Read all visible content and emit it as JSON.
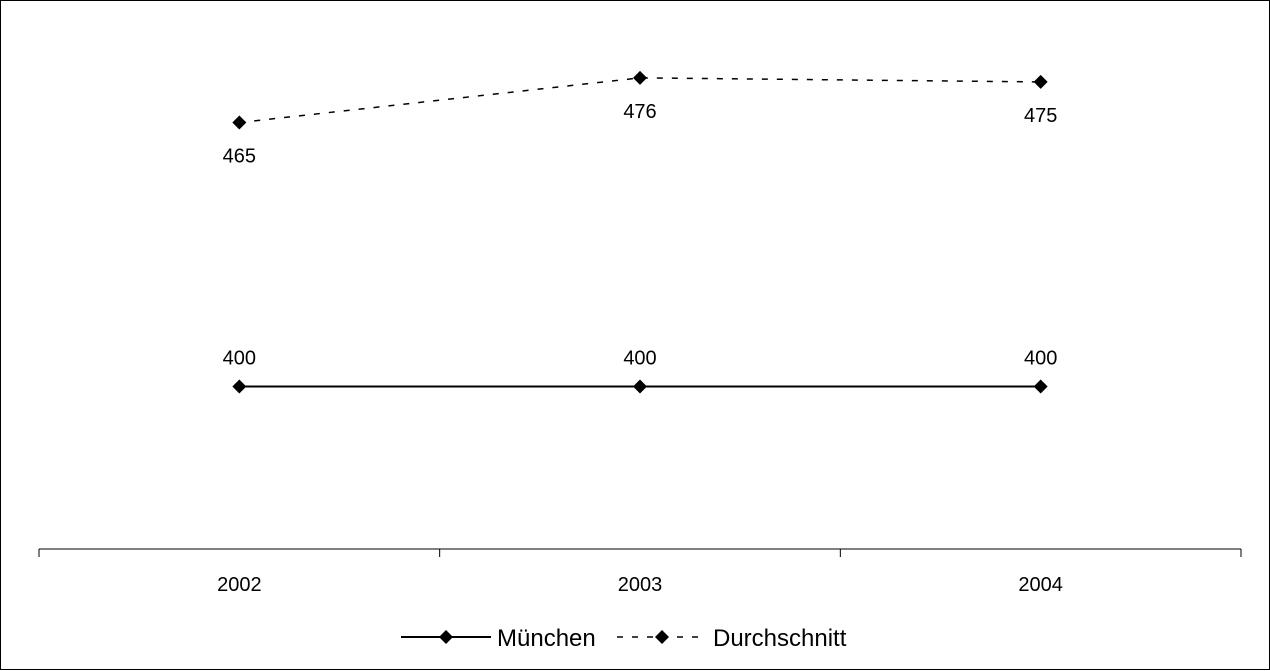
{
  "chart_data": {
    "type": "line",
    "categories": [
      "2002",
      "2003",
      "2004"
    ],
    "series": [
      {
        "name": "München",
        "values": [
          400,
          400,
          400
        ],
        "labels": [
          "400",
          "400",
          "400"
        ],
        "color": "#000000",
        "line_style": "solid",
        "marker": "diamond"
      },
      {
        "name": "Durchschnitt",
        "values": [
          465,
          476,
          475
        ],
        "labels": [
          "465",
          "476",
          "475"
        ],
        "color": "#000000",
        "line_style": "dashed",
        "marker": "diamond"
      }
    ],
    "ylim": [
      360,
      490
    ],
    "grid": false,
    "y_axis_visible": false,
    "legend": "bottom-center"
  }
}
